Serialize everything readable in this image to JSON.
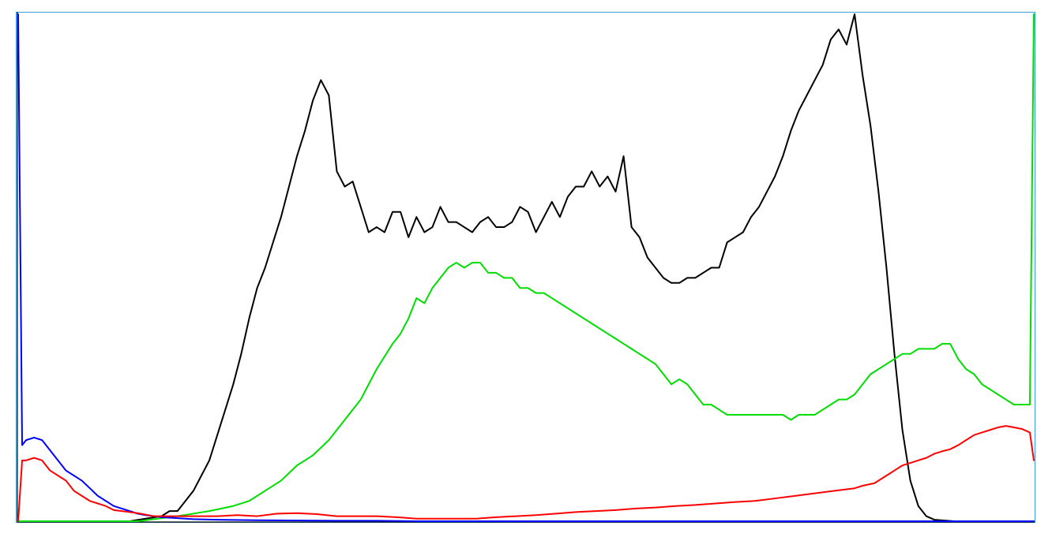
{
  "chart_data": {
    "type": "line",
    "title": "",
    "xlabel": "",
    "ylabel": "",
    "xlim": [
      0,
      255
    ],
    "ylim": [
      0,
      100
    ],
    "grid": false,
    "legend": "none",
    "series": [
      {
        "color": "#000000",
        "points": [
          [
            0,
            0
          ],
          [
            28,
            0
          ],
          [
            32,
            0.5
          ],
          [
            36,
            1
          ],
          [
            38,
            2
          ],
          [
            40,
            2
          ],
          [
            42,
            4
          ],
          [
            44,
            6
          ],
          [
            46,
            9
          ],
          [
            48,
            12
          ],
          [
            50,
            17
          ],
          [
            52,
            22
          ],
          [
            54,
            27
          ],
          [
            56,
            33
          ],
          [
            58,
            40
          ],
          [
            60,
            46
          ],
          [
            62,
            50
          ],
          [
            64,
            55
          ],
          [
            66,
            60
          ],
          [
            68,
            66
          ],
          [
            70,
            72
          ],
          [
            72,
            77
          ],
          [
            74,
            83
          ],
          [
            76,
            87
          ],
          [
            78,
            84
          ],
          [
            80,
            69
          ],
          [
            82,
            66
          ],
          [
            84,
            67
          ],
          [
            86,
            62
          ],
          [
            88,
            57
          ],
          [
            90,
            58
          ],
          [
            92,
            57
          ],
          [
            94,
            61
          ],
          [
            96,
            61
          ],
          [
            98,
            56
          ],
          [
            100,
            60
          ],
          [
            102,
            57
          ],
          [
            104,
            58
          ],
          [
            106,
            62
          ],
          [
            108,
            59
          ],
          [
            110,
            59
          ],
          [
            112,
            58
          ],
          [
            114,
            57
          ],
          [
            116,
            59
          ],
          [
            118,
            60
          ],
          [
            120,
            58
          ],
          [
            122,
            58
          ],
          [
            124,
            59
          ],
          [
            126,
            62
          ],
          [
            128,
            61
          ],
          [
            130,
            57
          ],
          [
            132,
            60
          ],
          [
            134,
            63
          ],
          [
            136,
            60
          ],
          [
            138,
            64
          ],
          [
            140,
            66
          ],
          [
            142,
            66
          ],
          [
            144,
            69
          ],
          [
            146,
            66
          ],
          [
            148,
            68
          ],
          [
            150,
            65
          ],
          [
            152,
            72
          ],
          [
            154,
            58
          ],
          [
            156,
            56
          ],
          [
            158,
            52
          ],
          [
            160,
            50
          ],
          [
            162,
            48
          ],
          [
            164,
            47
          ],
          [
            166,
            47
          ],
          [
            168,
            48
          ],
          [
            170,
            48
          ],
          [
            172,
            49
          ],
          [
            174,
            50
          ],
          [
            176,
            50
          ],
          [
            178,
            55
          ],
          [
            180,
            56
          ],
          [
            182,
            57
          ],
          [
            184,
            60
          ],
          [
            186,
            62
          ],
          [
            188,
            65
          ],
          [
            190,
            68
          ],
          [
            192,
            72
          ],
          [
            194,
            77
          ],
          [
            196,
            81
          ],
          [
            198,
            84
          ],
          [
            200,
            87
          ],
          [
            202,
            90
          ],
          [
            204,
            95
          ],
          [
            206,
            97
          ],
          [
            208,
            94
          ],
          [
            210,
            100
          ],
          [
            212,
            88
          ],
          [
            214,
            78
          ],
          [
            216,
            65
          ],
          [
            218,
            50
          ],
          [
            220,
            33
          ],
          [
            222,
            18
          ],
          [
            224,
            8
          ],
          [
            226,
            3
          ],
          [
            228,
            1
          ],
          [
            230,
            0.3
          ],
          [
            235,
            0
          ],
          [
            255,
            0
          ]
        ]
      },
      {
        "color": "#00dd00",
        "points": [
          [
            0,
            0
          ],
          [
            30,
            0
          ],
          [
            40,
            1
          ],
          [
            48,
            2
          ],
          [
            54,
            3
          ],
          [
            58,
            4
          ],
          [
            62,
            6
          ],
          [
            66,
            8
          ],
          [
            70,
            11
          ],
          [
            74,
            13
          ],
          [
            78,
            16
          ],
          [
            82,
            20
          ],
          [
            86,
            24
          ],
          [
            88,
            27
          ],
          [
            90,
            30
          ],
          [
            94,
            35
          ],
          [
            96,
            37
          ],
          [
            98,
            40
          ],
          [
            100,
            44
          ],
          [
            102,
            43
          ],
          [
            104,
            46
          ],
          [
            106,
            48
          ],
          [
            108,
            50
          ],
          [
            110,
            51
          ],
          [
            112,
            50
          ],
          [
            114,
            51
          ],
          [
            116,
            51
          ],
          [
            118,
            49
          ],
          [
            120,
            49
          ],
          [
            122,
            48
          ],
          [
            124,
            48
          ],
          [
            126,
            46
          ],
          [
            128,
            46
          ],
          [
            130,
            45
          ],
          [
            132,
            45
          ],
          [
            134,
            44
          ],
          [
            136,
            43
          ],
          [
            138,
            42
          ],
          [
            140,
            41
          ],
          [
            142,
            40
          ],
          [
            144,
            39
          ],
          [
            146,
            38
          ],
          [
            148,
            37
          ],
          [
            150,
            36
          ],
          [
            152,
            35
          ],
          [
            154,
            34
          ],
          [
            156,
            33
          ],
          [
            158,
            32
          ],
          [
            160,
            31
          ],
          [
            162,
            29
          ],
          [
            164,
            27
          ],
          [
            166,
            28
          ],
          [
            168,
            27
          ],
          [
            170,
            25
          ],
          [
            172,
            23
          ],
          [
            174,
            23
          ],
          [
            176,
            22
          ],
          [
            178,
            21
          ],
          [
            180,
            21
          ],
          [
            182,
            21
          ],
          [
            184,
            21
          ],
          [
            186,
            21
          ],
          [
            188,
            21
          ],
          [
            190,
            21
          ],
          [
            192,
            21
          ],
          [
            194,
            20
          ],
          [
            196,
            21
          ],
          [
            198,
            21
          ],
          [
            200,
            21
          ],
          [
            202,
            22
          ],
          [
            204,
            23
          ],
          [
            206,
            24
          ],
          [
            208,
            24
          ],
          [
            210,
            25
          ],
          [
            212,
            27
          ],
          [
            214,
            29
          ],
          [
            216,
            30
          ],
          [
            218,
            31
          ],
          [
            220,
            32
          ],
          [
            222,
            33
          ],
          [
            224,
            33
          ],
          [
            226,
            34
          ],
          [
            228,
            34
          ],
          [
            230,
            34
          ],
          [
            232,
            35
          ],
          [
            234,
            35
          ],
          [
            236,
            32
          ],
          [
            238,
            30
          ],
          [
            240,
            29
          ],
          [
            242,
            27
          ],
          [
            244,
            26
          ],
          [
            246,
            25
          ],
          [
            248,
            24
          ],
          [
            250,
            23
          ],
          [
            252,
            23
          ],
          [
            254,
            23
          ],
          [
            255,
            100
          ]
        ]
      },
      {
        "color": "#0000ff",
        "points": [
          [
            0,
            100
          ],
          [
            1,
            15
          ],
          [
            2,
            16
          ],
          [
            4,
            16.5
          ],
          [
            6,
            16
          ],
          [
            8,
            14
          ],
          [
            10,
            12
          ],
          [
            12,
            10
          ],
          [
            14,
            9
          ],
          [
            16,
            8
          ],
          [
            18,
            6.5
          ],
          [
            20,
            5
          ],
          [
            22,
            4
          ],
          [
            24,
            3
          ],
          [
            26,
            2.5
          ],
          [
            28,
            2
          ],
          [
            30,
            1.5
          ],
          [
            32,
            1.2
          ],
          [
            34,
            1
          ],
          [
            36,
            0.8
          ],
          [
            40,
            0.6
          ],
          [
            44,
            0.4
          ],
          [
            50,
            0.3
          ],
          [
            60,
            0.2
          ],
          [
            80,
            0.1
          ],
          [
            90,
            0.1
          ],
          [
            100,
            0
          ],
          [
            255,
            0
          ]
        ]
      },
      {
        "color": "#ff0000",
        "points": [
          [
            0,
            0
          ],
          [
            1,
            12
          ],
          [
            2,
            12
          ],
          [
            4,
            12.5
          ],
          [
            6,
            12
          ],
          [
            8,
            10
          ],
          [
            10,
            9
          ],
          [
            12,
            8
          ],
          [
            14,
            6
          ],
          [
            16,
            5
          ],
          [
            18,
            4
          ],
          [
            20,
            3.5
          ],
          [
            22,
            3
          ],
          [
            24,
            2.2
          ],
          [
            26,
            2
          ],
          [
            28,
            1.8
          ],
          [
            30,
            1.6
          ],
          [
            32,
            1.3
          ],
          [
            34,
            1
          ],
          [
            36,
            1
          ],
          [
            40,
            1
          ],
          [
            45,
            1
          ],
          [
            50,
            1
          ],
          [
            55,
            1.2
          ],
          [
            60,
            1
          ],
          [
            65,
            1.5
          ],
          [
            70,
            1.6
          ],
          [
            75,
            1.4
          ],
          [
            80,
            1
          ],
          [
            85,
            1
          ],
          [
            90,
            1
          ],
          [
            95,
            0.8
          ],
          [
            100,
            0.5
          ],
          [
            105,
            0.5
          ],
          [
            110,
            0.5
          ],
          [
            115,
            0.5
          ],
          [
            120,
            0.8
          ],
          [
            125,
            1
          ],
          [
            130,
            1.2
          ],
          [
            135,
            1.5
          ],
          [
            140,
            1.8
          ],
          [
            145,
            2
          ],
          [
            150,
            2.2
          ],
          [
            155,
            2.5
          ],
          [
            160,
            2.7
          ],
          [
            165,
            3
          ],
          [
            170,
            3.2
          ],
          [
            175,
            3.5
          ],
          [
            180,
            3.8
          ],
          [
            185,
            4
          ],
          [
            190,
            4.5
          ],
          [
            195,
            5
          ],
          [
            200,
            5.5
          ],
          [
            205,
            6
          ],
          [
            210,
            6.5
          ],
          [
            212,
            7
          ],
          [
            215,
            7.5
          ],
          [
            218,
            9
          ],
          [
            220,
            10
          ],
          [
            222,
            11
          ],
          [
            224,
            11.5
          ],
          [
            226,
            12
          ],
          [
            228,
            12.5
          ],
          [
            230,
            13.3
          ],
          [
            232,
            13.8
          ],
          [
            234,
            14.2
          ],
          [
            236,
            15
          ],
          [
            238,
            16
          ],
          [
            240,
            17
          ],
          [
            242,
            17.5
          ],
          [
            244,
            18
          ],
          [
            246,
            18.5
          ],
          [
            248,
            18.8
          ],
          [
            250,
            18.5
          ],
          [
            252,
            18.2
          ],
          [
            254,
            17.5
          ],
          [
            255,
            12
          ]
        ]
      }
    ]
  }
}
